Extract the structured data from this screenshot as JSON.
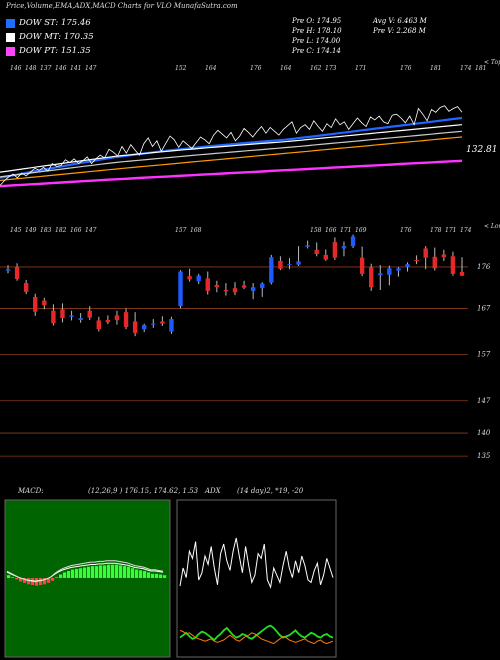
{
  "header": {
    "title": "Price,Volume,EMA,ADX,MACD Charts for VLO MunafaSutra.com"
  },
  "legend": [
    {
      "label": "DOW ST: 175.46",
      "color": "#1e6fff"
    },
    {
      "label": "DOW MT: 170.35",
      "color": "#ffffff"
    },
    {
      "label": "DOW PT: 151.35",
      "color": "#ff44ff"
    }
  ],
  "ohlc": {
    "open": "Pre   O: 174.95",
    "high": "Pre   H: 178.10",
    "low": "Pre   L: 174.00",
    "close": "Pre   C: 174.14",
    "avg_vol": "Avg V: 6.463 M",
    "pre_vol": "Pre   V: 2.268 M"
  },
  "top_panel": {
    "axis_tag": "< Topa",
    "last_label": "132.81",
    "tick_labels": [
      "146",
      "148",
      "137",
      "146",
      "141",
      "147",
      "",
      "",
      "",
      "",
      "",
      "152",
      "",
      "164",
      "",
      "",
      "176",
      "",
      "164",
      "",
      "162",
      "173",
      "",
      "171",
      "",
      "",
      "176",
      "",
      "181",
      "",
      "174",
      "181"
    ]
  },
  "candle_panel": {
    "axis_tag": "< Lowes",
    "tick_labels": [
      "145",
      "149",
      "183",
      "182",
      "166",
      "147",
      "",
      "",
      "",
      "",
      "",
      "157",
      "168",
      "",
      "",
      "",
      "",
      "",
      "",
      "",
      "158",
      "166",
      "171",
      "169",
      "",
      "",
      "176",
      "",
      "178",
      "171",
      "174"
    ]
  },
  "chart_data": {
    "type": "candlestick",
    "y_axis_ticks": [
      176,
      167,
      157,
      147,
      140,
      135
    ],
    "ylim": [
      132,
      184
    ],
    "candles": [
      {
        "o": 175.2,
        "h": 176.4,
        "l": 174.6,
        "c": 175.5
      },
      {
        "o": 176.0,
        "h": 176.8,
        "l": 173.0,
        "c": 173.4
      },
      {
        "o": 172.5,
        "h": 173.2,
        "l": 170.1,
        "c": 170.6
      },
      {
        "o": 169.5,
        "h": 170.2,
        "l": 165.4,
        "c": 166.3
      },
      {
        "o": 168.7,
        "h": 169.3,
        "l": 166.8,
        "c": 167.7
      },
      {
        "o": 166.5,
        "h": 167.9,
        "l": 163.3,
        "c": 163.8
      },
      {
        "o": 166.8,
        "h": 168.1,
        "l": 164.0,
        "c": 164.9
      },
      {
        "o": 165.2,
        "h": 166.5,
        "l": 164.4,
        "c": 165.5
      },
      {
        "o": 164.5,
        "h": 166.0,
        "l": 163.9,
        "c": 164.9
      },
      {
        "o": 166.5,
        "h": 167.5,
        "l": 164.5,
        "c": 165.0
      },
      {
        "o": 164.4,
        "h": 165.2,
        "l": 162.0,
        "c": 162.5
      },
      {
        "o": 164.5,
        "h": 165.5,
        "l": 163.6,
        "c": 164.0
      },
      {
        "o": 165.5,
        "h": 166.5,
        "l": 163.5,
        "c": 164.5
      },
      {
        "o": 166.2,
        "h": 167.0,
        "l": 162.5,
        "c": 163.0
      },
      {
        "o": 164.2,
        "h": 166.2,
        "l": 161.0,
        "c": 161.7
      },
      {
        "o": 162.5,
        "h": 163.7,
        "l": 161.9,
        "c": 163.4
      },
      {
        "o": 163.7,
        "h": 164.7,
        "l": 162.8,
        "c": 163.7
      },
      {
        "o": 164.2,
        "h": 165.3,
        "l": 163.2,
        "c": 163.7
      },
      {
        "o": 162.0,
        "h": 165.2,
        "l": 161.5,
        "c": 164.7
      },
      {
        "o": 167.5,
        "h": 175.3,
        "l": 167.0,
        "c": 175.0
      },
      {
        "o": 174.0,
        "h": 175.6,
        "l": 172.8,
        "c": 173.3
      },
      {
        "o": 172.9,
        "h": 174.5,
        "l": 172.3,
        "c": 174.1
      },
      {
        "o": 173.5,
        "h": 175.0,
        "l": 170.0,
        "c": 170.8
      },
      {
        "o": 172.1,
        "h": 173.0,
        "l": 170.5,
        "c": 171.6
      },
      {
        "o": 171.0,
        "h": 172.5,
        "l": 169.8,
        "c": 170.7
      },
      {
        "o": 171.4,
        "h": 172.7,
        "l": 169.9,
        "c": 170.5
      },
      {
        "o": 172.0,
        "h": 173.0,
        "l": 171.2,
        "c": 171.5
      },
      {
        "o": 170.8,
        "h": 172.5,
        "l": 169.0,
        "c": 171.6
      },
      {
        "o": 171.4,
        "h": 172.7,
        "l": 169.5,
        "c": 172.4
      },
      {
        "o": 172.6,
        "h": 178.6,
        "l": 172.2,
        "c": 178.1
      },
      {
        "o": 177.3,
        "h": 178.3,
        "l": 175.3,
        "c": 175.6
      },
      {
        "o": 176.6,
        "h": 177.9,
        "l": 175.5,
        "c": 176.6
      },
      {
        "o": 176.5,
        "h": 180.5,
        "l": 176.2,
        "c": 177.2
      },
      {
        "o": 180.4,
        "h": 181.7,
        "l": 180.0,
        "c": 180.7
      },
      {
        "o": 179.7,
        "h": 181.3,
        "l": 178.3,
        "c": 178.8
      },
      {
        "o": 178.6,
        "h": 179.8,
        "l": 177.3,
        "c": 177.6
      },
      {
        "o": 181.4,
        "h": 182.4,
        "l": 177.5,
        "c": 178.0
      },
      {
        "o": 180.0,
        "h": 181.5,
        "l": 178.3,
        "c": 180.5
      },
      {
        "o": 180.5,
        "h": 183.0,
        "l": 180.1,
        "c": 182.6
      },
      {
        "o": 178.0,
        "h": 180.4,
        "l": 174.0,
        "c": 174.5
      },
      {
        "o": 175.9,
        "h": 176.7,
        "l": 170.8,
        "c": 171.6
      },
      {
        "o": 174.2,
        "h": 176.4,
        "l": 171.0,
        "c": 174.6
      },
      {
        "o": 174.3,
        "h": 176.3,
        "l": 172.0,
        "c": 175.7
      },
      {
        "o": 175.2,
        "h": 176.0,
        "l": 173.9,
        "c": 175.7
      },
      {
        "o": 176.0,
        "h": 177.0,
        "l": 175.0,
        "c": 176.6
      },
      {
        "o": 177.5,
        "h": 178.5,
        "l": 176.6,
        "c": 177.4
      },
      {
        "o": 180.0,
        "h": 180.5,
        "l": 175.5,
        "c": 178.0
      },
      {
        "o": 178.2,
        "h": 180.2,
        "l": 175.2,
        "c": 175.7
      },
      {
        "o": 178.7,
        "h": 179.7,
        "l": 177.3,
        "c": 178.1
      },
      {
        "o": 178.3,
        "h": 179.3,
        "l": 174.1,
        "c": 174.5
      },
      {
        "o": 174.9,
        "h": 178.1,
        "l": 174.0,
        "c": 174.1
      }
    ],
    "price_line": [
      111,
      106,
      102,
      99,
      103,
      98,
      101,
      97,
      93,
      95,
      92,
      96,
      88,
      91,
      90,
      84,
      87,
      83,
      88,
      85,
      81,
      88,
      83,
      79,
      82,
      73,
      76,
      80,
      70,
      77,
      68,
      74,
      79,
      67,
      61,
      70,
      64,
      75,
      67,
      59,
      63,
      71,
      64,
      68,
      72,
      66,
      60,
      63,
      67,
      58,
      53,
      57,
      61,
      55,
      64,
      59,
      51,
      55,
      60,
      54,
      49,
      56,
      50,
      54,
      58,
      52,
      48,
      44,
      56,
      50,
      47,
      52,
      43,
      49,
      54,
      46,
      50,
      41,
      47,
      44,
      52,
      46,
      40,
      45,
      49,
      39,
      42,
      38,
      44,
      46,
      37,
      36,
      40,
      45,
      38,
      47,
      30,
      36,
      43,
      31,
      34,
      29,
      27,
      33,
      30,
      28,
      34
    ],
    "ema_series": [
      {
        "color": "#2266ff",
        "start": 100,
        "end": 40,
        "dip": -4,
        "width": 2.2
      },
      {
        "color": "#ffffff",
        "start": 94,
        "end": 47,
        "dip": -2,
        "width": 1.2
      },
      {
        "color": "#cccccc",
        "start": 99,
        "end": 54,
        "dip": -1,
        "width": 1.2
      },
      {
        "color": "#ff9900",
        "start": 105,
        "end": 60,
        "dip": 0,
        "width": 1.2
      },
      {
        "color": "#ff33ff",
        "start": 111,
        "end": 85,
        "dip": 0,
        "width": 2.4
      }
    ]
  },
  "macd_panel": {
    "label": "MACD:",
    "values": "(12,26,9 ) 176.15,  174.62,  1.53",
    "hist": [
      0.2,
      0.05,
      -0.1,
      -0.25,
      -0.35,
      -0.45,
      -0.5,
      -0.55,
      -0.5,
      -0.45,
      -0.35,
      -0.2,
      0.05,
      0.25,
      0.4,
      0.5,
      0.6,
      0.65,
      0.7,
      0.75,
      0.8,
      0.85,
      0.85,
      0.9,
      0.9,
      0.95,
      0.95,
      0.95,
      0.9,
      0.85,
      0.8,
      0.7,
      0.6,
      0.55,
      0.5,
      0.4,
      0.3,
      0.3,
      0.25,
      0.2
    ]
  },
  "adx_panel": {
    "label": "ADX",
    "values": "(14  day)2,  *19,  -20",
    "white_line": [
      55,
      70,
      62,
      84,
      78,
      92,
      60,
      66,
      80,
      73,
      88,
      70,
      56,
      82,
      90,
      76,
      68,
      84,
      95,
      80,
      66,
      88,
      72,
      58,
      64,
      82,
      78,
      90,
      60,
      54,
      70,
      64,
      58,
      72,
      84,
      70,
      62,
      76,
      66,
      80,
      72,
      60,
      58,
      68,
      74,
      56,
      64,
      78,
      70,
      62
    ],
    "green_line": [
      12,
      14,
      16,
      13,
      11,
      12,
      15,
      17,
      16,
      14,
      12,
      10,
      13,
      15,
      18,
      20,
      17,
      14,
      12,
      13,
      15,
      14,
      12,
      11,
      13,
      15,
      17,
      19,
      21,
      22,
      20,
      17,
      14,
      12,
      13,
      14,
      16,
      18,
      15,
      13,
      12,
      14,
      16,
      15,
      13,
      12,
      14,
      15,
      13,
      12
    ],
    "orange_line": [
      18,
      17,
      15,
      16,
      14,
      12,
      11,
      10,
      9,
      10,
      11,
      9,
      8,
      9,
      10,
      12,
      14,
      12,
      10,
      9,
      11,
      13,
      14,
      16,
      15,
      13,
      11,
      10,
      9,
      8,
      7,
      9,
      11,
      13,
      12,
      10,
      9,
      8,
      9,
      10,
      11,
      9,
      8,
      7,
      9,
      10,
      8,
      7,
      8,
      9
    ]
  }
}
